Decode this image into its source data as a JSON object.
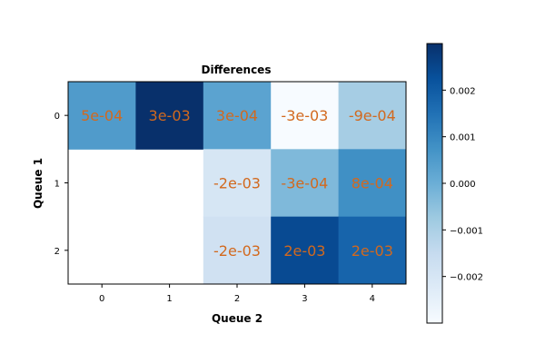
{
  "chart_data": {
    "type": "heatmap",
    "title": "Differences",
    "xlabel": "Queue 2",
    "ylabel": "Queue 1",
    "x_ticks": [
      "0",
      "1",
      "2",
      "3",
      "4"
    ],
    "y_ticks": [
      "0",
      "1",
      "2"
    ],
    "values": [
      [
        0.0005,
        0.003,
        0.0003,
        -0.003,
        -0.0009
      ],
      [
        null,
        null,
        -0.002,
        -0.0003,
        0.0008
      ],
      [
        null,
        null,
        -0.0018,
        0.0024,
        0.0018
      ]
    ],
    "cell_labels": [
      [
        "5e-04",
        "3e-03",
        "3e-04",
        "-3e-03",
        "-9e-04"
      ],
      [
        "",
        "",
        "-2e-03",
        "-3e-04",
        "8e-04"
      ],
      [
        "",
        "",
        "-2e-03",
        "2e-03",
        "2e-03"
      ]
    ],
    "colormap": "Blues",
    "color_range": [
      -0.003,
      0.003
    ],
    "colorbar_ticks": [
      "0.002",
      "0.001",
      "0.000",
      "−0.001",
      "−0.002"
    ],
    "colorbar_tick_values": [
      0.002,
      0.001,
      0.0,
      -0.001,
      -0.002
    ],
    "annotation_color": "#d2691e"
  }
}
